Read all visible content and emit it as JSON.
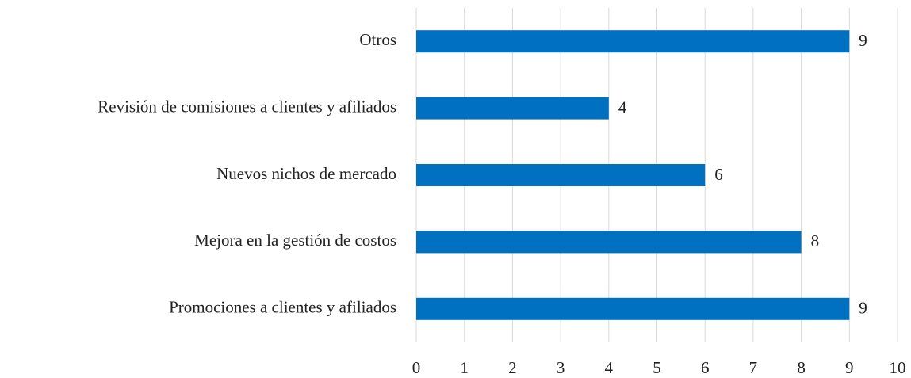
{
  "chart_data": {
    "type": "bar",
    "orientation": "horizontal",
    "categories": [
      "Otros",
      "Revisión de comisiones a clientes y afiliados",
      "Nuevos nichos de mercado",
      "Mejora en la gestión de costos",
      "Promociones a clientes y afiliados"
    ],
    "values": [
      9,
      4,
      6,
      8,
      9
    ],
    "color": "#0070c0",
    "xlim": [
      0,
      10
    ],
    "xticks": [
      0,
      1,
      2,
      3,
      4,
      5,
      6,
      7,
      8,
      9,
      10
    ],
    "grid": true
  }
}
